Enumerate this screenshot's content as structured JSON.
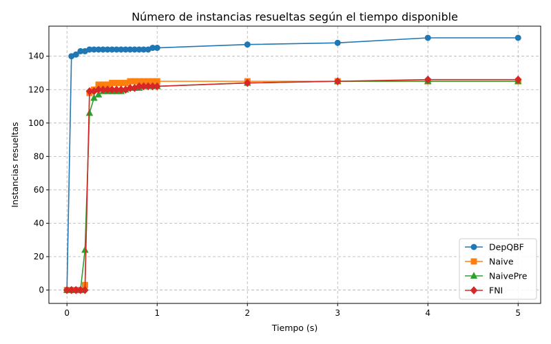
{
  "chart_data": {
    "type": "line",
    "title": "Número de instancias resueltas según el tiempo disponible",
    "xlabel": "Tiempo (s)",
    "ylabel": "Instancias resueltas",
    "xlim": [
      -0.2,
      5.25
    ],
    "ylim": [
      -8,
      158
    ],
    "xticks": [
      0,
      1,
      2,
      3,
      4,
      5
    ],
    "yticks": [
      0,
      20,
      40,
      60,
      80,
      100,
      120,
      140
    ],
    "grid": true,
    "legend_position": "bottom-right",
    "series": [
      {
        "name": "DepQBF",
        "color": "#1f77b4",
        "marker": "circle",
        "x": [
          0,
          0.05,
          0.1,
          0.15,
          0.2,
          0.25,
          0.3,
          0.35,
          0.4,
          0.45,
          0.5,
          0.55,
          0.6,
          0.65,
          0.7,
          0.75,
          0.8,
          0.85,
          0.9,
          0.95,
          1,
          2,
          3,
          4,
          5
        ],
        "y": [
          0,
          140,
          141,
          143,
          143,
          144,
          144,
          144,
          144,
          144,
          144,
          144,
          144,
          144,
          144,
          144,
          144,
          144,
          144,
          145,
          145,
          147,
          148,
          151,
          151
        ]
      },
      {
        "name": "Naive",
        "color": "#ff7f0e",
        "marker": "square",
        "x": [
          0,
          0.05,
          0.1,
          0.15,
          0.2,
          0.25,
          0.3,
          0.35,
          0.4,
          0.45,
          0.5,
          0.55,
          0.6,
          0.65,
          0.7,
          0.75,
          0.8,
          0.85,
          0.9,
          0.95,
          1,
          2,
          3,
          4,
          5
        ],
        "y": [
          0,
          0,
          0,
          0,
          3,
          118,
          120,
          123,
          123,
          123,
          124,
          124,
          124,
          124,
          125,
          125,
          125,
          125,
          125,
          125,
          125,
          125,
          125,
          125,
          125
        ]
      },
      {
        "name": "NaivePre",
        "color": "#2ca02c",
        "marker": "triangle",
        "x": [
          0,
          0.05,
          0.1,
          0.15,
          0.2,
          0.25,
          0.3,
          0.35,
          0.4,
          0.45,
          0.5,
          0.55,
          0.6,
          0.65,
          0.7,
          0.75,
          0.8,
          0.85,
          0.9,
          0.95,
          1,
          2,
          3,
          4,
          5
        ],
        "y": [
          0,
          0,
          0,
          0,
          24,
          106,
          115,
          117,
          119,
          119,
          119,
          119,
          119,
          120,
          121,
          121,
          121,
          122,
          122,
          122,
          122,
          124,
          125,
          125,
          125
        ]
      },
      {
        "name": "FNI",
        "color": "#d62728",
        "marker": "diamond",
        "x": [
          0,
          0.05,
          0.1,
          0.15,
          0.2,
          0.25,
          0.3,
          0.35,
          0.4,
          0.45,
          0.5,
          0.55,
          0.6,
          0.65,
          0.7,
          0.75,
          0.8,
          0.85,
          0.9,
          0.95,
          1,
          2,
          3,
          4,
          5
        ],
        "y": [
          0,
          0,
          0,
          0,
          0,
          119,
          119,
          120,
          120,
          120,
          120,
          120,
          120,
          120,
          121,
          121,
          122,
          122,
          122,
          122,
          122,
          124,
          125,
          126,
          126
        ]
      }
    ]
  }
}
